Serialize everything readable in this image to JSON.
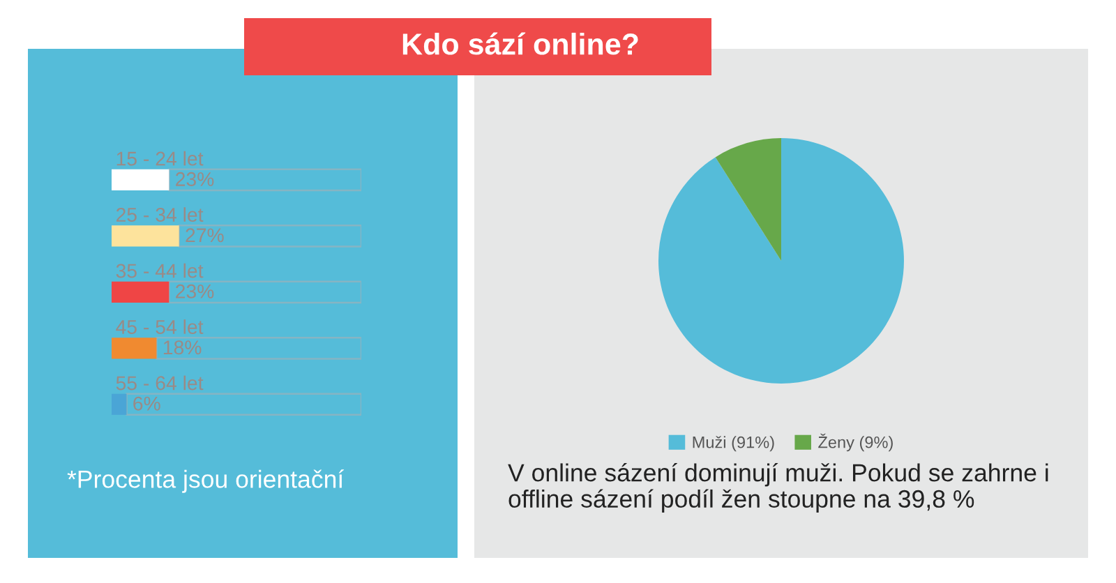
{
  "chart_data": [
    {
      "type": "bar",
      "orientation": "horizontal",
      "stacked": true,
      "categories": [
        "15 - 24 let",
        "25 - 34 let",
        "35 - 44 let",
        "45 - 54 let",
        "55 - 64 let"
      ],
      "series": [
        {
          "colors": [
            "#ffffff",
            "#fde39c",
            "#ef4545",
            "#f08a30",
            "#4aa5d6"
          ],
          "values": [
            23,
            27,
            23,
            18,
            6
          ],
          "value_labels": [
            "23%",
            "27%",
            "23%",
            "18%",
            "6%"
          ]
        },
        {
          "color": "#86b4c3",
          "values": [
            77,
            73,
            77,
            82,
            94
          ]
        }
      ],
      "xlim": [
        0,
        100
      ],
      "tick_labels": "y",
      "annotations": [
        "*Procenta jsou orientační"
      ]
    },
    {
      "type": "pie",
      "title": "Kdo sází online?",
      "categories": [
        "Muži (91%)",
        "Ženy (9%)"
      ],
      "values": [
        91,
        9
      ],
      "colors": [
        "#55bcd9",
        "#67a84a"
      ],
      "legend": "bottom",
      "annotations": [
        "V online sázení dominují muži. Pokud se zahrne i offline sázení podíl žen stoupne na 39,8 %"
      ]
    }
  ]
}
